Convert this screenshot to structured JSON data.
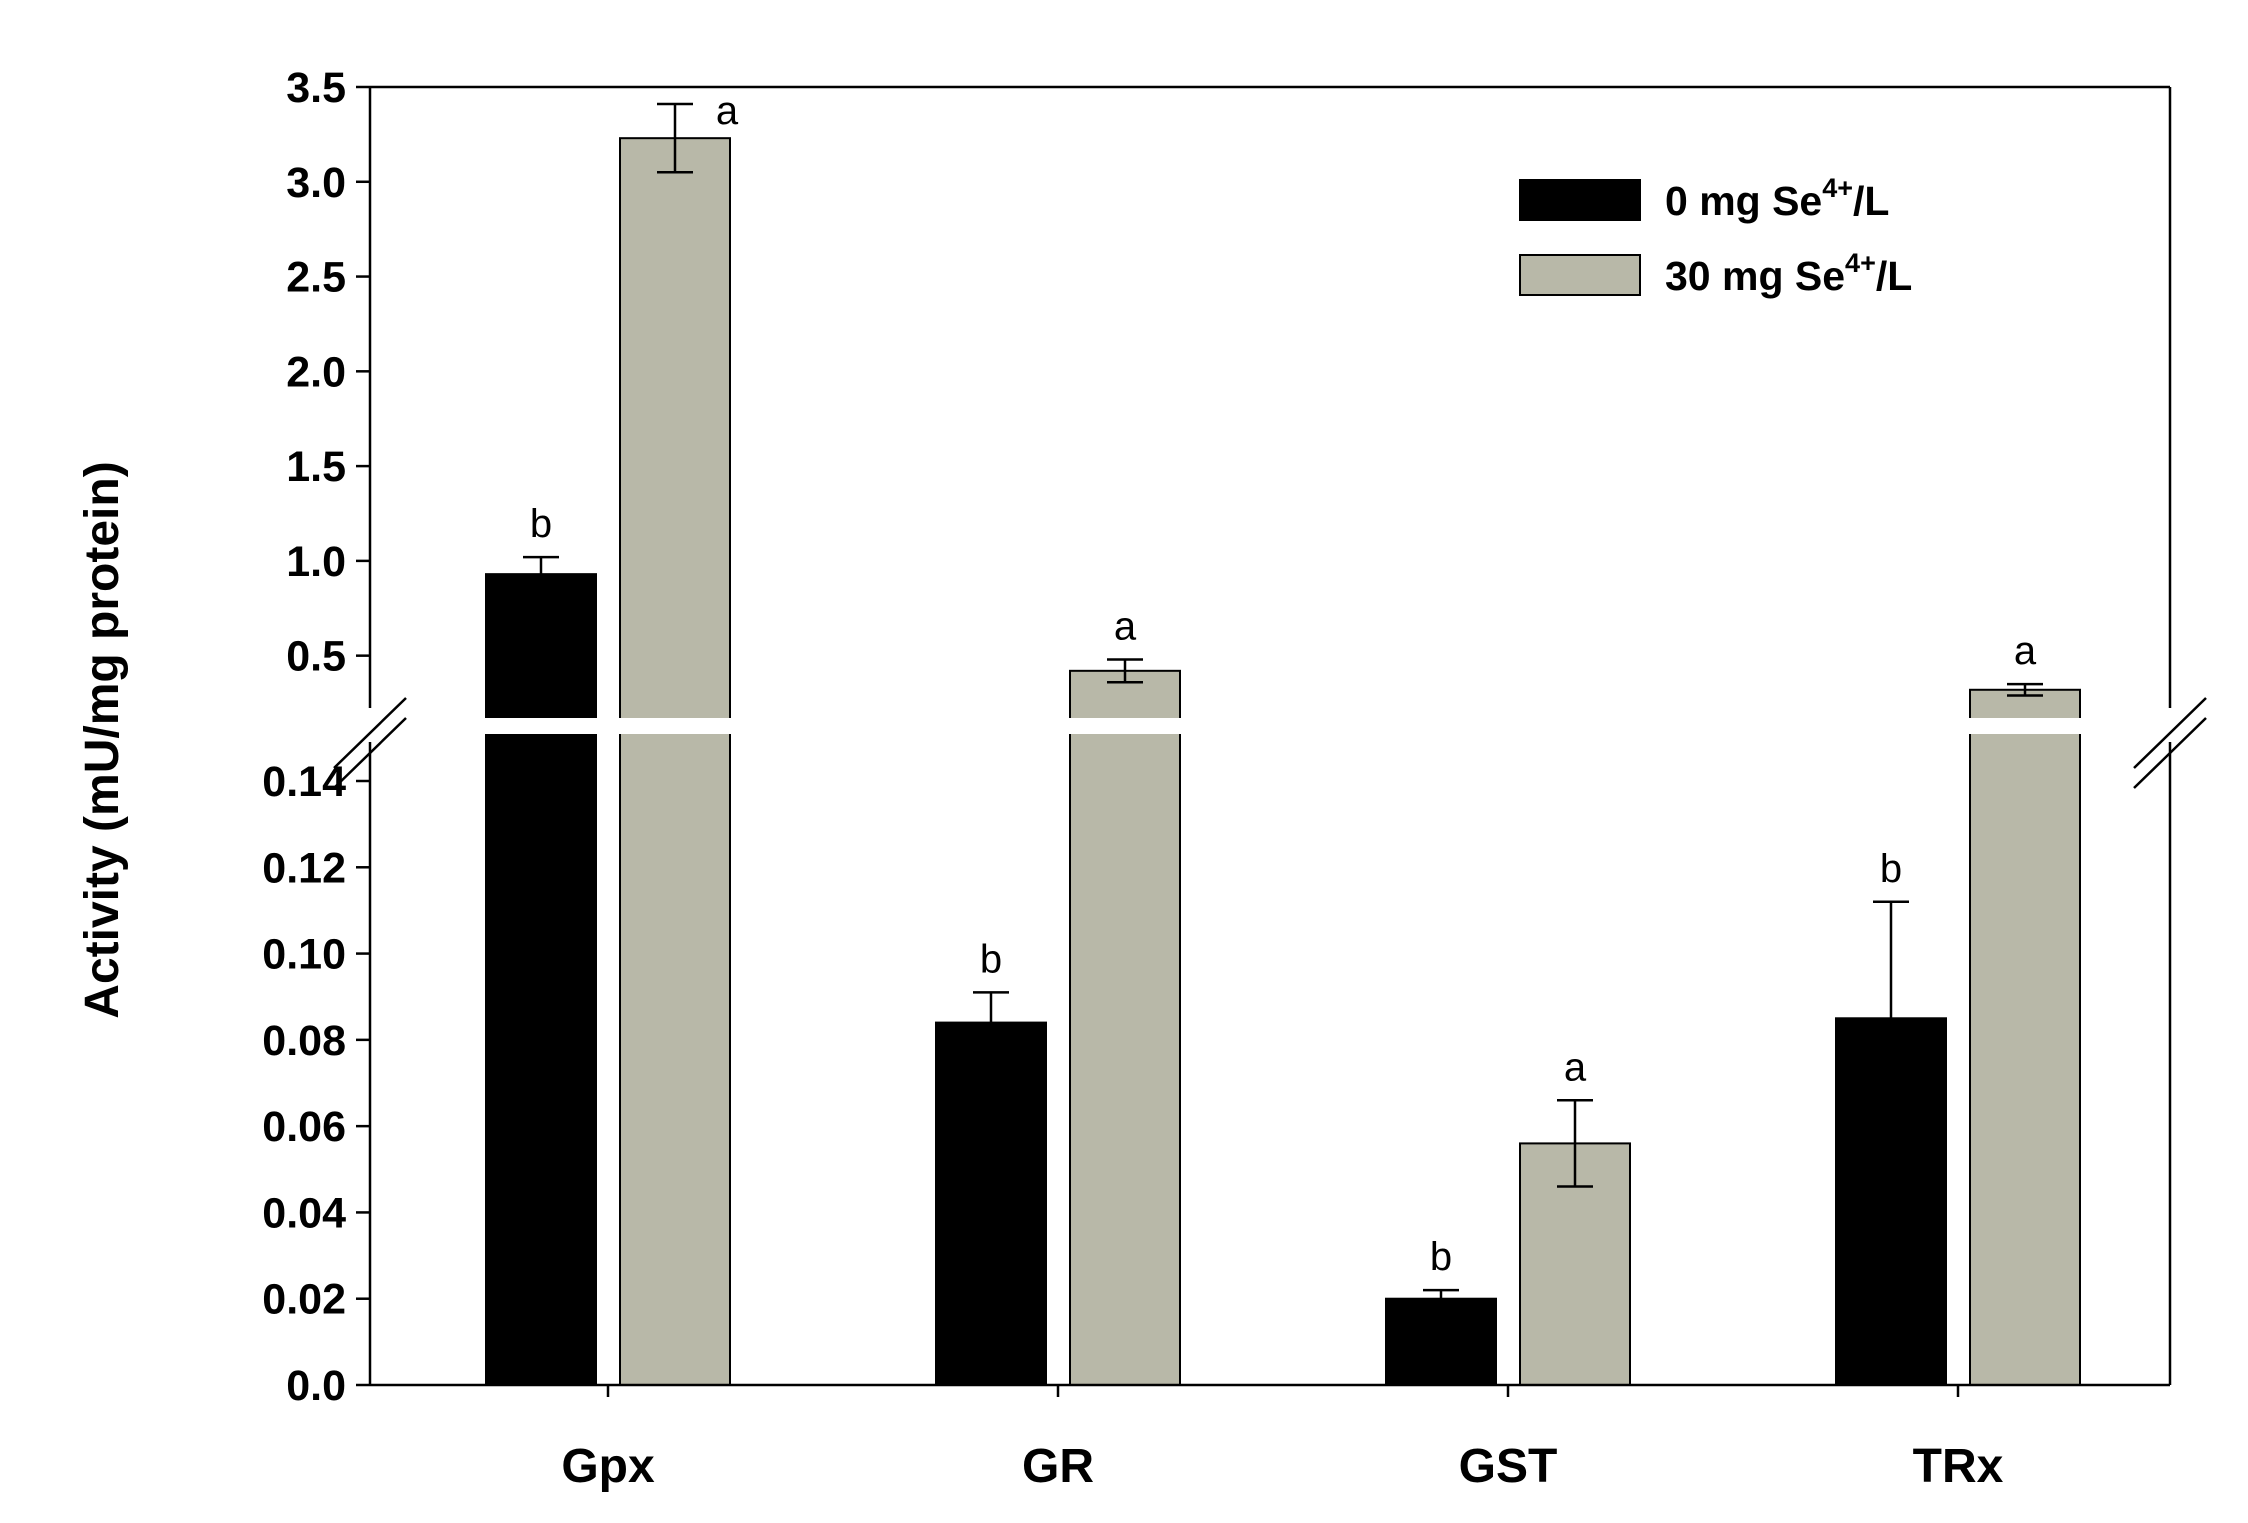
{
  "chart_data": {
    "type": "bar",
    "title": "",
    "xlabel": "",
    "ylabel": "Activity (mU/mg protein)",
    "categories": [
      "Gpx",
      "GR",
      "GST",
      "TRx"
    ],
    "series": [
      {
        "name": "0 mg Se4+/L",
        "legend_main": "0 mg Se",
        "legend_sup": "4+",
        "legend_tail": "/L",
        "color": "#000000",
        "values": [
          0.93,
          0.084,
          0.02,
          0.085
        ],
        "errors": [
          0.09,
          0.007,
          0.002,
          0.027
        ],
        "letters": [
          "b",
          "b",
          "b",
          "b"
        ]
      },
      {
        "name": "30 mg Se4+/L",
        "legend_main": "30 mg Se",
        "legend_sup": "4+",
        "legend_tail": "/L",
        "color": "#b8b8a8",
        "values": [
          3.23,
          0.42,
          0.056,
          0.32
        ],
        "errors": [
          0.18,
          0.06,
          0.01,
          0.03
        ],
        "letters": [
          "a",
          "a",
          "a",
          "a"
        ]
      }
    ],
    "axis_break": {
      "lower_range": [
        0,
        0.15
      ],
      "upper_range": [
        0.15,
        3.5
      ]
    },
    "y_ticks_lower": [
      "0.0",
      "0.02",
      "0.04",
      "0.06",
      "0.08",
      "0.10",
      "0.12",
      "0.14"
    ],
    "y_ticks_upper": [
      "0.5",
      "1.0",
      "1.5",
      "2.0",
      "2.5",
      "3.0",
      "3.5"
    ],
    "legend_position": "top-right",
    "grid": false
  }
}
